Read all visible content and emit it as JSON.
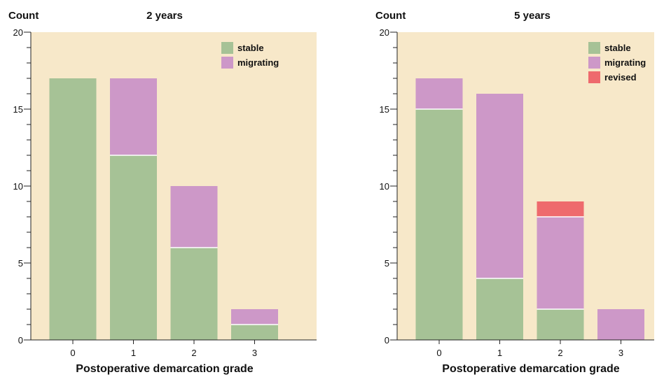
{
  "colors": {
    "plot_background": "#f7e8c9",
    "stable": "#a6c296",
    "migrating": "#cd98c8",
    "revised": "#ee6a6d",
    "axis": "#222222"
  },
  "chart_data": [
    {
      "type": "bar",
      "stacked": true,
      "title": "2 years",
      "ylabel": "Count",
      "xlabel": "Postoperative demarcation grade",
      "categories": [
        "0",
        "1",
        "2",
        "3"
      ],
      "ylim": [
        0,
        20
      ],
      "yticks": [
        0,
        5,
        10,
        15,
        20
      ],
      "legend_position": "top-right",
      "series": [
        {
          "name": "stable",
          "color": "#a6c296",
          "values": [
            17,
            12,
            6,
            1
          ]
        },
        {
          "name": "migrating",
          "color": "#cd98c8",
          "values": [
            0,
            5,
            4,
            1
          ]
        }
      ]
    },
    {
      "type": "bar",
      "stacked": true,
      "title": "5 years",
      "ylabel": "Count",
      "xlabel": "Postoperative demarcation grade",
      "categories": [
        "0",
        "1",
        "2",
        "3"
      ],
      "ylim": [
        0,
        20
      ],
      "yticks": [
        0,
        5,
        10,
        15,
        20
      ],
      "legend_position": "top-right",
      "series": [
        {
          "name": "stable",
          "color": "#a6c296",
          "values": [
            15,
            4,
            2,
            0
          ]
        },
        {
          "name": "migrating",
          "color": "#cd98c8",
          "values": [
            2,
            12,
            6,
            2
          ]
        },
        {
          "name": "revised",
          "color": "#ee6a6d",
          "values": [
            0,
            0,
            1,
            0
          ]
        }
      ]
    }
  ]
}
